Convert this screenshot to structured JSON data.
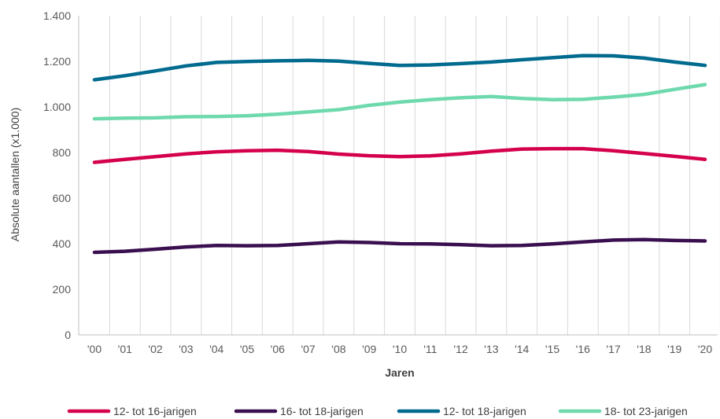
{
  "chart_data": {
    "type": "line",
    "title": "",
    "xlabel": "Jaren",
    "ylabel": "Absolute aantallen (x1.000)",
    "ylim": [
      0,
      1400
    ],
    "yticks": [
      0,
      200,
      400,
      600,
      800,
      1000,
      1200,
      1400
    ],
    "ytick_labels": [
      "0",
      "200",
      "400",
      "600",
      "800",
      "1.000",
      "1.200",
      "1.400"
    ],
    "categories": [
      "'00",
      "'01",
      "'02",
      "'03",
      "'04",
      "'05",
      "'06",
      "'07",
      "'08",
      "'09",
      "'10",
      "'11",
      "'12",
      "'13",
      "'14",
      "'15",
      "'16",
      "'17",
      "'18",
      "'19",
      "'20"
    ],
    "grid": "vertical",
    "legend_position": "bottom",
    "series": [
      {
        "name": "12- tot 16-jarigen",
        "color": "#D5004C",
        "values": [
          757,
          770,
          782,
          794,
          803,
          808,
          810,
          804,
          793,
          786,
          782,
          785,
          794,
          806,
          815,
          817,
          817,
          808,
          796,
          783,
          770
        ]
      },
      {
        "name": "16- tot 18-jarigen",
        "color": "#3A0F4F",
        "values": [
          362,
          367,
          376,
          386,
          392,
          391,
          392,
          400,
          408,
          405,
          400,
          399,
          396,
          391,
          392,
          399,
          408,
          416,
          418,
          414,
          412
        ]
      },
      {
        "name": "12- tot 18-jarigen",
        "color": "#006B8F",
        "values": [
          1119,
          1137,
          1158,
          1180,
          1195,
          1199,
          1202,
          1204,
          1201,
          1191,
          1182,
          1184,
          1190,
          1197,
          1207,
          1216,
          1225,
          1224,
          1214,
          1197,
          1182
        ]
      },
      {
        "name": "18- tot 23-jarigen",
        "color": "#6FD9AE",
        "values": [
          948,
          951,
          952,
          957,
          958,
          961,
          968,
          978,
          988,
          1007,
          1021,
          1032,
          1040,
          1046,
          1037,
          1032,
          1033,
          1043,
          1055,
          1077,
          1098
        ]
      }
    ]
  }
}
